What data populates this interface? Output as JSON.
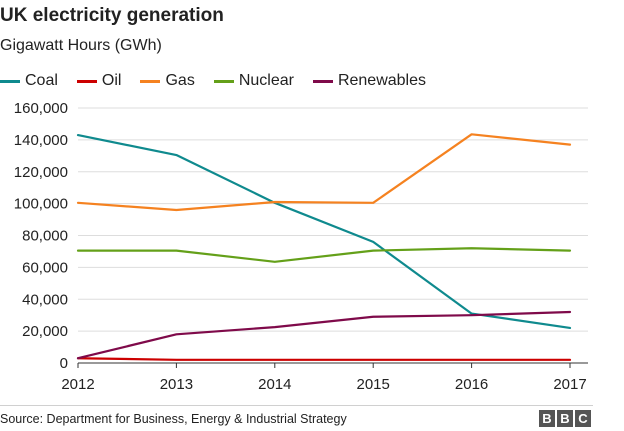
{
  "title": "UK electricity generation",
  "subtitle": "Gigawatt Hours (GWh)",
  "source": "Source: Department for Business, Energy & Industrial Strategy",
  "logo": [
    "B",
    "B",
    "C"
  ],
  "chart_data": {
    "type": "line",
    "title": "UK electricity generation",
    "subtitle": "Gigawatt Hours (GWh)",
    "xlabel": "",
    "ylabel": "",
    "x": [
      "2012",
      "2013",
      "2014",
      "2015",
      "2016",
      "2017"
    ],
    "y_ticks": [
      "0",
      "20,000",
      "40,000",
      "60,000",
      "80,000",
      "100,000",
      "120,000",
      "140,000",
      "160,000"
    ],
    "ylim": [
      0,
      160000
    ],
    "grid": "horizontal",
    "legend_position": "top-left",
    "series": [
      {
        "name": "Coal",
        "color": "#0f8a8e",
        "values": [
          143000,
          130500,
          100500,
          76000,
          31000,
          22000
        ]
      },
      {
        "name": "Oil",
        "color": "#cc0000",
        "values": [
          3000,
          2000,
          2000,
          2000,
          2000,
          2000
        ]
      },
      {
        "name": "Gas",
        "color": "#f58220",
        "values": [
          100500,
          96000,
          101000,
          100500,
          143500,
          137000
        ]
      },
      {
        "name": "Nuclear",
        "color": "#64a019",
        "values": [
          70500,
          70500,
          63500,
          70500,
          72000,
          70500
        ]
      },
      {
        "name": "Renewables",
        "color": "#7f0a4a",
        "values": [
          3000,
          18000,
          22500,
          29000,
          30000,
          32000
        ]
      }
    ]
  }
}
